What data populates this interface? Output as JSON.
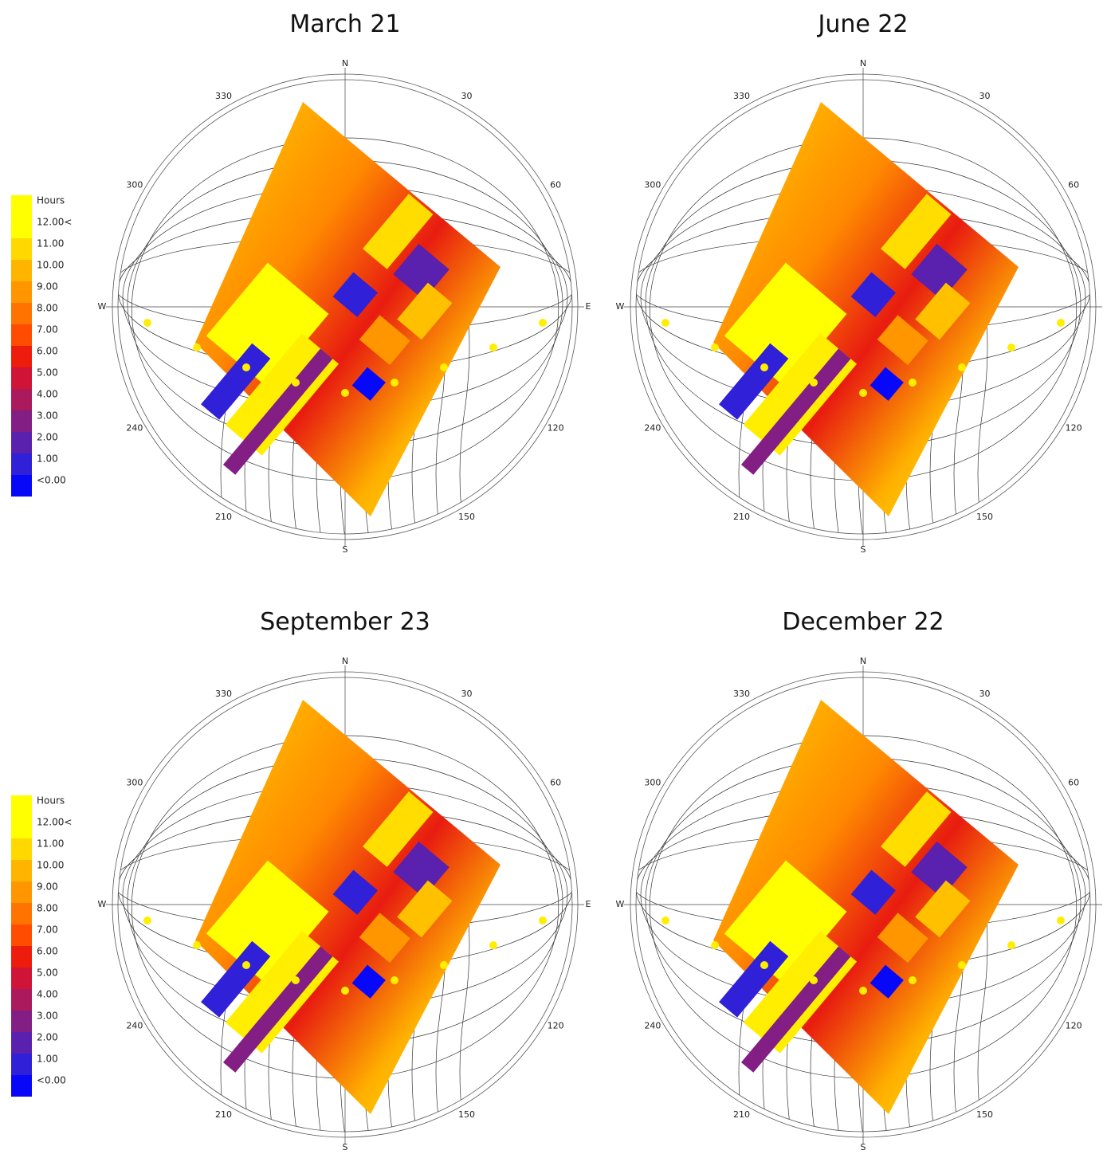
{
  "legend": {
    "title": "Hours",
    "labels": [
      "12.00<",
      "11.00",
      "10.00",
      "9.00",
      "8.00",
      "7.00",
      "6.00",
      "5.00",
      "4.00",
      "3.00",
      "2.00",
      "1.00",
      "<0.00"
    ],
    "colors": [
      "#ffff00",
      "#ffd800",
      "#ffb400",
      "#ff9600",
      "#ff7400",
      "#ff4c00",
      "#ee1c0c",
      "#d01438",
      "#aa1a5c",
      "#821e84",
      "#5a20ae",
      "#3020d8",
      "#0808f8"
    ]
  },
  "panels": [
    {
      "title": "March 21",
      "labels": [
        "N",
        "30",
        "60",
        "E",
        "120",
        "150",
        "S",
        "210",
        "240",
        "W",
        "300",
        "330"
      ]
    },
    {
      "title": "June 22",
      "labels": [
        "N",
        "30",
        "60",
        "120",
        "150",
        "S",
        "210",
        "240",
        "W",
        "300",
        "330"
      ]
    },
    {
      "title": "September 23",
      "labels": [
        "N",
        "30",
        "60",
        "E",
        "120",
        "150",
        "S",
        "210",
        "240",
        "W",
        "300",
        "330"
      ]
    },
    {
      "title": "December 22",
      "labels": [
        "N",
        "30",
        "60",
        "120",
        "150",
        "S",
        "210",
        "240",
        "W",
        "300",
        "330"
      ]
    }
  ]
}
